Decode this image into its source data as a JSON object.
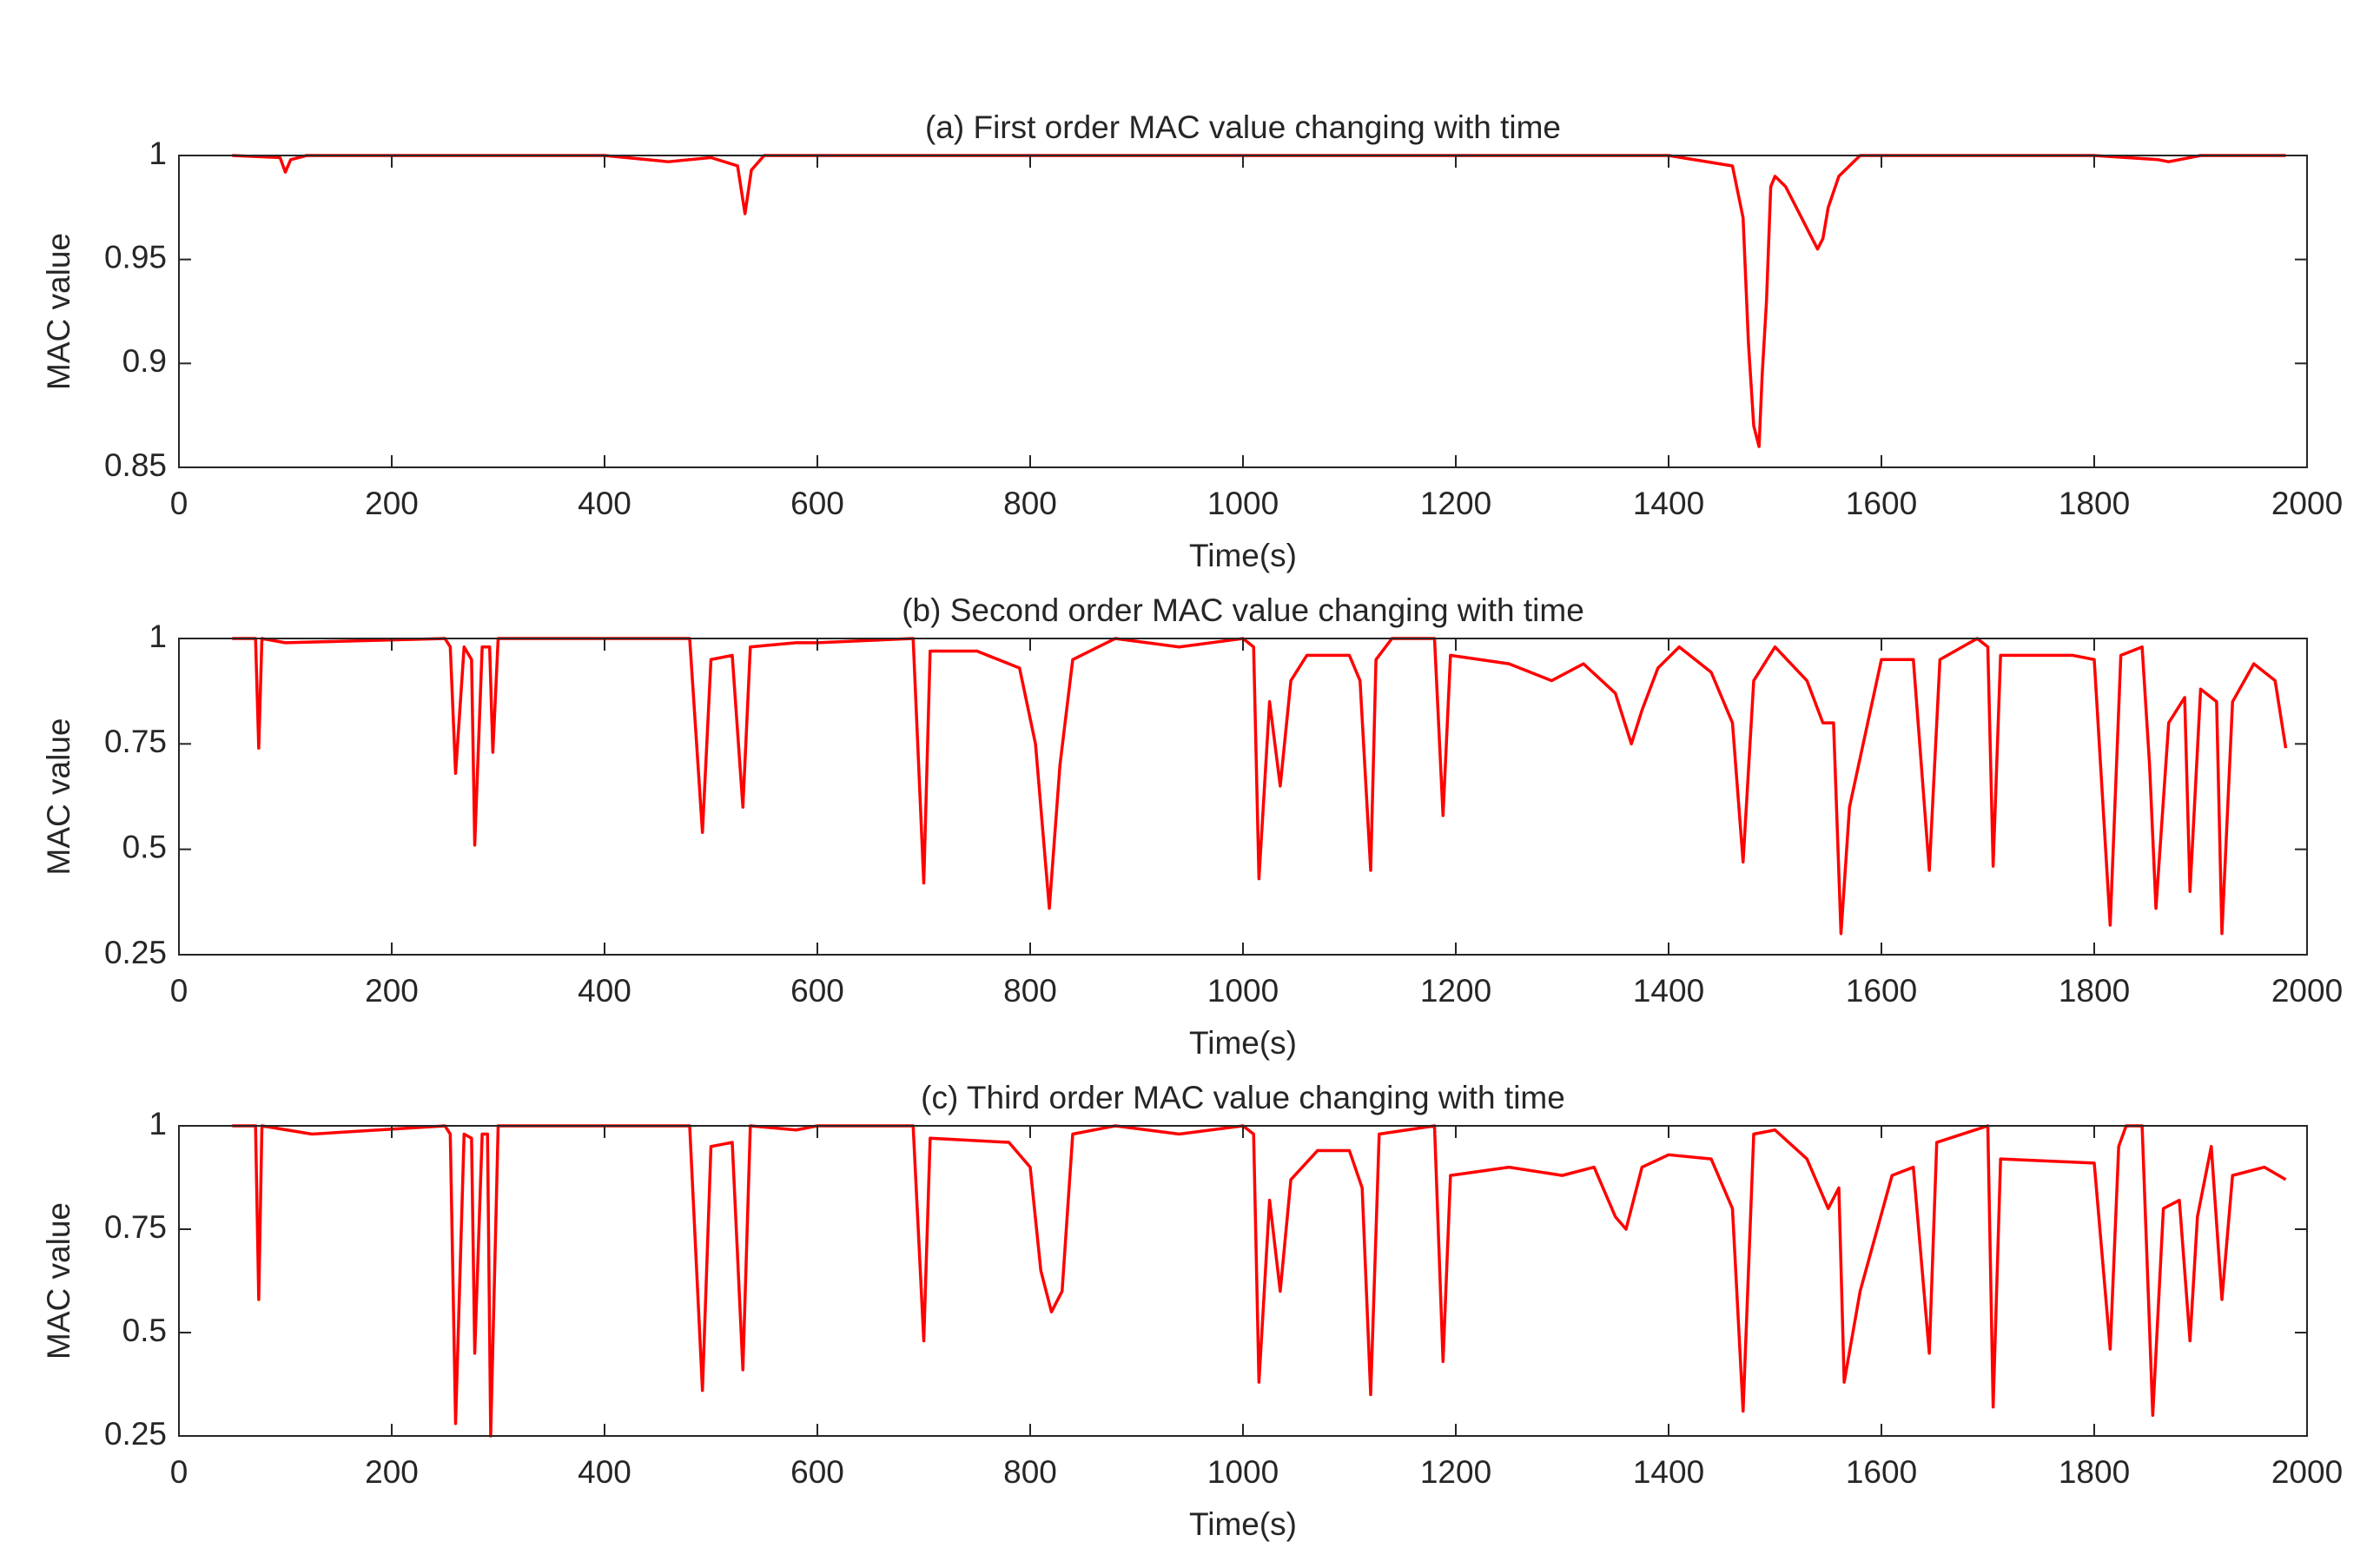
{
  "chart_data": [
    {
      "type": "line",
      "title": "(a) First order MAC value changing with time",
      "x_label": "Time(s)",
      "y_label": "MAC value",
      "color": "#ff0000",
      "xlim": [
        0,
        2000
      ],
      "ylim": [
        0.85,
        1
      ],
      "xticks": [
        0,
        200,
        400,
        600,
        800,
        1000,
        1200,
        1400,
        1600,
        1800,
        2000
      ],
      "yticks": [
        0.85,
        0.9,
        0.95,
        1
      ],
      "x": [
        50,
        95,
        100,
        105,
        120,
        200,
        300,
        400,
        440,
        460,
        500,
        525,
        532,
        538,
        550,
        600,
        700,
        800,
        900,
        1000,
        1100,
        1200,
        1300,
        1400,
        1460,
        1470,
        1475,
        1480,
        1485,
        1488,
        1492,
        1496,
        1500,
        1510,
        1520,
        1530,
        1540,
        1545,
        1550,
        1560,
        1580,
        1600,
        1700,
        1800,
        1860,
        1870,
        1900,
        1980
      ],
      "values": [
        1,
        0.999,
        0.992,
        0.998,
        1,
        1,
        1,
        1,
        0.998,
        0.997,
        0.999,
        0.995,
        0.972,
        0.993,
        1,
        1,
        1,
        1,
        1,
        1,
        1,
        1,
        1,
        1,
        0.995,
        0.97,
        0.91,
        0.87,
        0.86,
        0.895,
        0.93,
        0.985,
        0.99,
        0.985,
        0.975,
        0.965,
        0.955,
        0.96,
        0.975,
        0.99,
        1,
        1,
        1,
        1,
        0.998,
        0.997,
        1,
        1
      ]
    },
    {
      "type": "line",
      "title": "(b) Second order MAC value changing with time",
      "x_label": "Time(s)",
      "y_label": "MAC value",
      "color": "#ff0000",
      "xlim": [
        0,
        2000
      ],
      "ylim": [
        0.25,
        1
      ],
      "xticks": [
        0,
        200,
        400,
        600,
        800,
        1000,
        1200,
        1400,
        1600,
        1800,
        2000
      ],
      "yticks": [
        0.25,
        0.5,
        0.75,
        1
      ],
      "x": [
        50,
        72,
        75,
        78,
        100,
        250,
        255,
        260,
        268,
        275,
        278,
        285,
        292,
        295,
        300,
        480,
        492,
        500,
        520,
        530,
        537,
        580,
        600,
        690,
        700,
        706,
        750,
        790,
        805,
        818,
        828,
        840,
        880,
        940,
        1000,
        1010,
        1015,
        1025,
        1035,
        1045,
        1060,
        1100,
        1110,
        1120,
        1125,
        1140,
        1180,
        1188,
        1195,
        1250,
        1290,
        1320,
        1350,
        1365,
        1375,
        1390,
        1410,
        1440,
        1460,
        1470,
        1480,
        1500,
        1530,
        1545,
        1555,
        1562,
        1570,
        1600,
        1630,
        1645,
        1655,
        1690,
        1700,
        1705,
        1712,
        1780,
        1800,
        1815,
        1825,
        1845,
        1852,
        1858,
        1870,
        1885,
        1890,
        1900,
        1915,
        1920,
        1930,
        1950,
        1970,
        1980
      ],
      "values": [
        1,
        1,
        0.74,
        1,
        0.99,
        1,
        0.98,
        0.68,
        0.98,
        0.95,
        0.51,
        0.98,
        0.98,
        0.73,
        1,
        1,
        0.54,
        0.95,
        0.96,
        0.6,
        0.98,
        0.99,
        0.99,
        1,
        0.42,
        0.97,
        0.97,
        0.93,
        0.75,
        0.36,
        0.7,
        0.95,
        1,
        0.98,
        1,
        0.98,
        0.43,
        0.85,
        0.65,
        0.9,
        0.96,
        0.96,
        0.9,
        0.45,
        0.95,
        1,
        1,
        0.58,
        0.96,
        0.94,
        0.9,
        0.94,
        0.87,
        0.75,
        0.83,
        0.93,
        0.98,
        0.92,
        0.8,
        0.47,
        0.9,
        0.98,
        0.9,
        0.8,
        0.8,
        0.3,
        0.6,
        0.95,
        0.95,
        0.45,
        0.95,
        1,
        0.98,
        0.46,
        0.96,
        0.96,
        0.95,
        0.32,
        0.96,
        0.98,
        0.7,
        0.36,
        0.8,
        0.86,
        0.4,
        0.88,
        0.85,
        0.3,
        0.85,
        0.94,
        0.9,
        0.74
      ]
    },
    {
      "type": "line",
      "title": "(c) Third order MAC value changing with time",
      "x_label": "Time(s)",
      "y_label": "MAC value",
      "color": "#ff0000",
      "xlim": [
        0,
        2000
      ],
      "ylim": [
        0.25,
        1
      ],
      "xticks": [
        0,
        200,
        400,
        600,
        800,
        1000,
        1200,
        1400,
        1600,
        1800,
        2000
      ],
      "yticks": [
        0.25,
        0.5,
        0.75,
        1
      ],
      "x": [
        50,
        72,
        75,
        78,
        125,
        250,
        255,
        260,
        268,
        275,
        278,
        285,
        290,
        293,
        300,
        480,
        492,
        500,
        520,
        530,
        537,
        580,
        600,
        690,
        700,
        706,
        780,
        800,
        810,
        820,
        830,
        840,
        880,
        940,
        1000,
        1010,
        1015,
        1025,
        1035,
        1045,
        1070,
        1100,
        1112,
        1120,
        1128,
        1180,
        1188,
        1195,
        1250,
        1300,
        1330,
        1350,
        1360,
        1375,
        1400,
        1440,
        1460,
        1470,
        1480,
        1500,
        1530,
        1550,
        1560,
        1565,
        1580,
        1610,
        1630,
        1645,
        1652,
        1700,
        1705,
        1712,
        1800,
        1815,
        1823,
        1830,
        1845,
        1855,
        1865,
        1880,
        1890,
        1897,
        1910,
        1920,
        1930,
        1960,
        1980
      ],
      "values": [
        1,
        1,
        0.58,
        1,
        0.98,
        1,
        0.98,
        0.28,
        0.98,
        0.97,
        0.45,
        0.98,
        0.98,
        0.25,
        1,
        1,
        0.36,
        0.95,
        0.96,
        0.41,
        1,
        0.99,
        1,
        1,
        0.48,
        0.97,
        0.96,
        0.9,
        0.65,
        0.55,
        0.6,
        0.98,
        1,
        0.98,
        1,
        0.98,
        0.38,
        0.82,
        0.6,
        0.87,
        0.94,
        0.94,
        0.85,
        0.35,
        0.98,
        1,
        0.43,
        0.88,
        0.9,
        0.88,
        0.9,
        0.78,
        0.75,
        0.9,
        0.93,
        0.92,
        0.8,
        0.31,
        0.98,
        0.99,
        0.92,
        0.8,
        0.85,
        0.38,
        0.6,
        0.88,
        0.9,
        0.45,
        0.96,
        1,
        0.32,
        0.92,
        0.91,
        0.46,
        0.95,
        1,
        1,
        0.3,
        0.8,
        0.82,
        0.48,
        0.78,
        0.95,
        0.58,
        0.88,
        0.9,
        0.87
      ]
    }
  ]
}
